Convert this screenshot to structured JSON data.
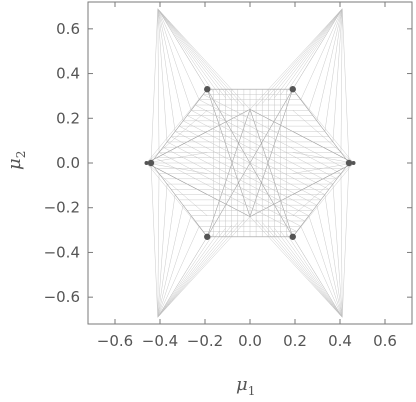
{
  "chart_data": {
    "type": "scatter",
    "title": "",
    "xlabel": "μ",
    "xlabel_sub": "1",
    "ylabel": "μ",
    "ylabel_sub": "2",
    "xlim": [
      -0.72,
      0.72
    ],
    "ylim": [
      -0.72,
      0.72
    ],
    "x_ticks": [
      -0.6,
      -0.4,
      -0.2,
      0.0,
      0.2,
      0.4,
      0.6
    ],
    "x_tick_labels": [
      "−0.6",
      "−0.4",
      "−0.2",
      "0.0",
      "0.2",
      "0.4",
      "0.6"
    ],
    "y_ticks": [
      0.6,
      0.4,
      0.2,
      0.0,
      -0.2,
      -0.4,
      -0.6
    ],
    "y_tick_labels": [
      "0.6",
      "0.4",
      "0.2",
      "0.0",
      "−0.2",
      "−0.4",
      "−0.6"
    ],
    "grid": false,
    "legend": "none",
    "colors": {
      "lines": "#9a9a9a",
      "spots": "#555555",
      "frame": "#7a7a7a"
    },
    "hexagon_vertices": [
      [
        0.19,
        0.33
      ],
      [
        0.44,
        0.0
      ],
      [
        0.19,
        -0.33
      ],
      [
        -0.19,
        -0.33
      ],
      [
        -0.44,
        0.0
      ],
      [
        -0.19,
        0.33
      ]
    ],
    "spike_tips": [
      [
        -0.41,
        0.69
      ],
      [
        0.41,
        0.69
      ],
      [
        -0.41,
        -0.69
      ],
      [
        0.41,
        -0.69
      ],
      [
        -0.46,
        0.0
      ],
      [
        0.46,
        0.0
      ]
    ],
    "star_points": [
      [
        0.0,
        0.24
      ],
      [
        0.0,
        -0.24
      ]
    ]
  }
}
